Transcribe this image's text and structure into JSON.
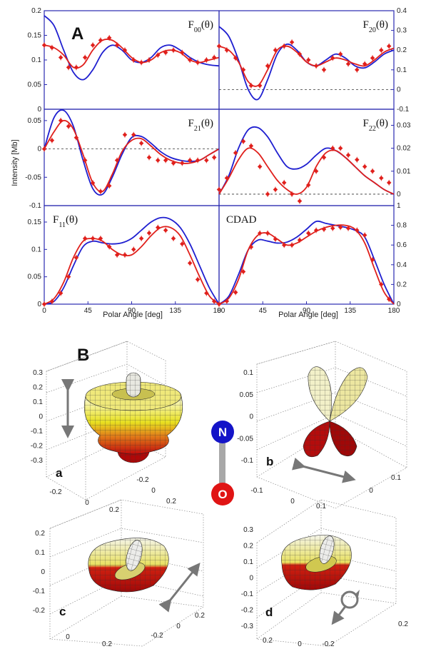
{
  "figure": {
    "panel_a_label": "A",
    "panel_b_label": "B",
    "y_axis_label": "Intensity [Mb]",
    "x_axis_label": "Polar Angle [deg]",
    "x_ticks": [
      "0",
      "45",
      "90",
      "135",
      "180"
    ],
    "colors": {
      "theory": "#1f1fd0",
      "experiment": "#e0201c",
      "frame": "#2a2ab0"
    }
  },
  "chart_data": [
    {
      "type": "line",
      "title": "F00(θ)",
      "title_main": "F",
      "title_sub": "00",
      "title_arg": "(θ)",
      "axis_side": "left",
      "ylim": [
        0,
        0.2
      ],
      "yticks": [
        "0",
        "0.05",
        "0.1",
        "0.15",
        "0.2"
      ],
      "zero_line": false,
      "x": [
        0,
        10,
        20,
        30,
        40,
        50,
        60,
        70,
        80,
        90,
        100,
        110,
        120,
        130,
        140,
        150,
        160,
        170,
        180
      ],
      "series": [
        {
          "role": "theory",
          "values": [
            0.19,
            0.17,
            0.12,
            0.075,
            0.06,
            0.08,
            0.115,
            0.13,
            0.12,
            0.1,
            0.095,
            0.105,
            0.125,
            0.13,
            0.12,
            0.105,
            0.095,
            0.09,
            0.088
          ]
        },
        {
          "role": "fit",
          "values": [
            0.13,
            0.125,
            0.11,
            0.085,
            0.09,
            0.12,
            0.14,
            0.14,
            0.125,
            0.105,
            0.095,
            0.1,
            0.115,
            0.12,
            0.115,
            0.1,
            0.095,
            0.1,
            0.105
          ]
        },
        {
          "role": "experiment",
          "x": [
            0,
            8,
            17,
            25,
            33,
            42,
            50,
            58,
            67,
            75,
            83,
            92,
            100,
            108,
            117,
            125,
            133,
            142,
            150,
            158,
            167,
            175
          ],
          "values": [
            0.13,
            0.125,
            0.105,
            0.085,
            0.085,
            0.105,
            0.13,
            0.14,
            0.145,
            0.13,
            0.12,
            0.1,
            0.095,
            0.1,
            0.11,
            0.115,
            0.12,
            0.115,
            0.1,
            0.095,
            0.1,
            0.105
          ]
        }
      ]
    },
    {
      "type": "line",
      "title": "F20(θ)",
      "title_main": "F",
      "title_sub": "20",
      "title_arg": "(θ)",
      "axis_side": "right",
      "ylim": [
        -0.1,
        0.4
      ],
      "yticks": [
        "-0.1",
        "0",
        "0.1",
        "0.2",
        "0.3",
        "0.4"
      ],
      "zero_line": true,
      "x": [
        0,
        10,
        20,
        30,
        40,
        50,
        60,
        70,
        80,
        90,
        100,
        110,
        120,
        130,
        140,
        150,
        160,
        170,
        180
      ],
      "series": [
        {
          "role": "theory",
          "values": [
            0.32,
            0.27,
            0.15,
            0.0,
            -0.05,
            0.05,
            0.18,
            0.23,
            0.2,
            0.14,
            0.12,
            0.15,
            0.18,
            0.16,
            0.12,
            0.11,
            0.14,
            0.18,
            0.2
          ]
        },
        {
          "role": "fit",
          "values": [
            0.22,
            0.2,
            0.14,
            0.04,
            0.02,
            0.1,
            0.2,
            0.22,
            0.19,
            0.14,
            0.12,
            0.14,
            0.16,
            0.15,
            0.13,
            0.12,
            0.15,
            0.19,
            0.21
          ]
        },
        {
          "role": "experiment",
          "x": [
            0,
            8,
            17,
            25,
            33,
            42,
            50,
            58,
            67,
            75,
            83,
            92,
            100,
            108,
            117,
            125,
            133,
            142,
            150,
            158,
            167,
            175
          ],
          "values": [
            0.22,
            0.2,
            0.16,
            0.1,
            0.02,
            0.02,
            0.12,
            0.2,
            0.22,
            0.24,
            0.18,
            0.15,
            0.12,
            0.1,
            0.16,
            0.18,
            0.13,
            0.1,
            0.13,
            0.16,
            0.2,
            0.22
          ]
        }
      ]
    },
    {
      "type": "line",
      "title": "F21(θ)",
      "title_main": "F",
      "title_sub": "21",
      "title_arg": "(θ)",
      "axis_side": "left",
      "ylim": [
        -0.1,
        0.07
      ],
      "yticks": [
        "-0.1",
        "-0.05",
        "0",
        "0.05"
      ],
      "zero_line": true,
      "x": [
        0,
        10,
        20,
        30,
        40,
        50,
        60,
        70,
        80,
        90,
        100,
        110,
        120,
        130,
        140,
        150,
        160,
        170,
        180
      ],
      "series": [
        {
          "role": "theory",
          "values": [
            0,
            0.055,
            0.068,
            0.04,
            -0.02,
            -0.07,
            -0.08,
            -0.05,
            -0.01,
            0.02,
            0.022,
            0.01,
            -0.005,
            -0.015,
            -0.02,
            -0.022,
            -0.02,
            -0.01,
            0
          ]
        },
        {
          "role": "fit",
          "values": [
            0,
            0.03,
            0.05,
            0.035,
            -0.01,
            -0.06,
            -0.075,
            -0.045,
            -0.005,
            0.015,
            0.018,
            0.005,
            -0.01,
            -0.02,
            -0.025,
            -0.025,
            -0.02,
            -0.01,
            0
          ]
        },
        {
          "role": "experiment",
          "x": [
            0,
            8,
            17,
            25,
            33,
            42,
            50,
            58,
            67,
            75,
            83,
            92,
            100,
            108,
            117,
            125,
            133,
            142,
            150,
            158,
            167,
            175
          ],
          "values": [
            0,
            0.015,
            0.05,
            0.04,
            0.02,
            -0.02,
            -0.06,
            -0.075,
            -0.065,
            -0.02,
            0.025,
            0.025,
            0.01,
            -0.015,
            -0.02,
            -0.02,
            -0.025,
            -0.025,
            -0.02,
            -0.02,
            -0.02,
            -0.015
          ]
        }
      ]
    },
    {
      "type": "line",
      "title": "F22(θ)",
      "title_main": "F",
      "title_sub": "22",
      "title_arg": "(θ)",
      "axis_side": "right",
      "ylim": [
        -0.005,
        0.037
      ],
      "yticks": [
        "0",
        "0.01",
        "0.02",
        "0.03"
      ],
      "zero_line": true,
      "x": [
        0,
        10,
        20,
        30,
        40,
        50,
        60,
        70,
        80,
        90,
        100,
        110,
        120,
        130,
        140,
        150,
        160,
        170,
        180
      ],
      "series": [
        {
          "role": "theory",
          "values": [
            0,
            0.008,
            0.02,
            0.028,
            0.029,
            0.025,
            0.018,
            0.012,
            0.011,
            0.013,
            0.017,
            0.02,
            0.019,
            0.016,
            0.012,
            0.008,
            0.005,
            0.002,
            0
          ]
        },
        {
          "role": "fit",
          "values": [
            0,
            0.007,
            0.015,
            0.02,
            0.018,
            0.012,
            0.006,
            0.002,
            0.0,
            0.003,
            0.012,
            0.018,
            0.019,
            0.016,
            0.012,
            0.008,
            0.005,
            0.002,
            0
          ]
        },
        {
          "role": "experiment",
          "x": [
            0,
            8,
            17,
            25,
            33,
            42,
            50,
            58,
            67,
            75,
            83,
            92,
            100,
            108,
            117,
            125,
            133,
            142,
            150,
            158,
            167,
            175
          ],
          "values": [
            0.002,
            0.007,
            0.018,
            0.023,
            0.021,
            0.012,
            0.0,
            0.002,
            0.005,
            0.0,
            -0.003,
            0.004,
            0.01,
            0.016,
            0.02,
            0.02,
            0.017,
            0.015,
            0.012,
            0.01,
            0.007,
            0.005
          ]
        }
      ]
    },
    {
      "type": "line",
      "title": "F11(θ)",
      "title_main": "F",
      "title_sub": "11",
      "title_arg": "(θ)",
      "axis_side": "left",
      "ylim": [
        0,
        0.18
      ],
      "yticks": [
        "0",
        "0.05",
        "0.1",
        "0.15"
      ],
      "zero_line": false,
      "x": [
        0,
        10,
        20,
        30,
        40,
        50,
        60,
        70,
        80,
        90,
        100,
        110,
        120,
        130,
        140,
        150,
        160,
        170,
        180
      ],
      "series": [
        {
          "role": "theory",
          "values": [
            0,
            0.005,
            0.03,
            0.07,
            0.105,
            0.115,
            0.112,
            0.11,
            0.112,
            0.12,
            0.135,
            0.15,
            0.158,
            0.155,
            0.14,
            0.11,
            0.07,
            0.03,
            0
          ]
        },
        {
          "role": "fit",
          "values": [
            0,
            0.01,
            0.04,
            0.085,
            0.115,
            0.12,
            0.115,
            0.1,
            0.09,
            0.09,
            0.105,
            0.125,
            0.14,
            0.14,
            0.125,
            0.09,
            0.05,
            0.015,
            0
          ]
        },
        {
          "role": "experiment",
          "x": [
            0,
            8,
            17,
            25,
            33,
            42,
            50,
            58,
            67,
            75,
            83,
            92,
            100,
            108,
            117,
            125,
            133,
            142,
            150,
            158,
            167,
            175
          ],
          "values": [
            0,
            0.005,
            0.02,
            0.05,
            0.085,
            0.12,
            0.12,
            0.12,
            0.105,
            0.09,
            0.09,
            0.1,
            0.12,
            0.13,
            0.14,
            0.135,
            0.12,
            0.11,
            0.075,
            0.045,
            0.02,
            0.005
          ]
        }
      ]
    },
    {
      "type": "line",
      "title": "CDAD",
      "title_main": "CDAD",
      "title_sub": "",
      "title_arg": "",
      "axis_side": "right",
      "ylim": [
        0,
        1
      ],
      "yticks": [
        "0",
        "0.2",
        "0.4",
        "0.6",
        "0.8",
        "1"
      ],
      "zero_line": false,
      "x": [
        0,
        10,
        20,
        30,
        40,
        50,
        60,
        70,
        80,
        90,
        100,
        110,
        120,
        130,
        140,
        150,
        160,
        170,
        180
      ],
      "series": [
        {
          "role": "theory",
          "values": [
            0,
            0.08,
            0.3,
            0.55,
            0.65,
            0.64,
            0.62,
            0.63,
            0.68,
            0.76,
            0.84,
            0.82,
            0.8,
            0.78,
            0.75,
            0.68,
            0.45,
            0.2,
            0
          ]
        },
        {
          "role": "fit",
          "values": [
            0,
            0.06,
            0.25,
            0.55,
            0.7,
            0.72,
            0.66,
            0.6,
            0.62,
            0.68,
            0.74,
            0.78,
            0.8,
            0.8,
            0.76,
            0.62,
            0.36,
            0.12,
            0
          ]
        },
        {
          "role": "experiment",
          "x": [
            0,
            8,
            17,
            25,
            33,
            42,
            50,
            58,
            67,
            75,
            83,
            92,
            100,
            108,
            117,
            125,
            133,
            142,
            150,
            158,
            167,
            175
          ],
          "values": [
            0,
            0.03,
            0.12,
            0.33,
            0.58,
            0.72,
            0.72,
            0.66,
            0.6,
            0.6,
            0.65,
            0.72,
            0.75,
            0.76,
            0.77,
            0.78,
            0.77,
            0.75,
            0.7,
            0.45,
            0.2,
            0.05
          ]
        }
      ]
    }
  ],
  "panel_b": {
    "subpanels": [
      {
        "letter": "a",
        "yticks": [
          "0.3",
          "0.2",
          "0.1",
          "0",
          "-0.1",
          "-0.2",
          "-0.3"
        ],
        "xticks_front": [
          "-0.2",
          "0",
          "0.2"
        ],
        "xticks_side": [
          "-0.2",
          "0",
          "0.2"
        ]
      },
      {
        "letter": "b",
        "yticks": [
          "0.1",
          "0.05",
          "0",
          "-0.05",
          "-0.1"
        ],
        "xticks_front": [
          "-0.1",
          "0",
          "0.1"
        ],
        "xticks_side": [
          "0",
          "0.1"
        ]
      },
      {
        "letter": "c",
        "yticks": [
          "0.2",
          "0.1",
          "0",
          "-0.1",
          "-0.2"
        ],
        "xticks_front": [
          "0",
          "0.2"
        ],
        "xticks_side": [
          "-0.2",
          "0",
          "0.2"
        ]
      },
      {
        "letter": "d",
        "yticks": [
          "0.3",
          "0.2",
          "0.1",
          "0",
          "-0.1",
          "-0.2",
          "-0.3"
        ],
        "xticks_front": [
          "0.2",
          "0",
          "-0.2"
        ],
        "xticks_side": [
          "0.2"
        ]
      }
    ],
    "atom_top": "N",
    "atom_bottom": "O"
  }
}
